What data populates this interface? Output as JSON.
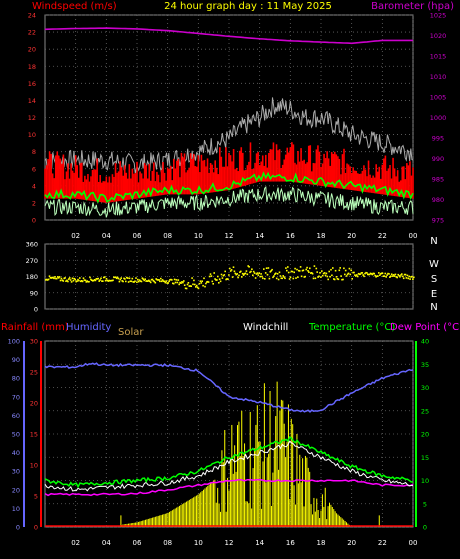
{
  "header": {
    "left_label": "Windspeed (m/s)",
    "title": "24 hour graph day : 11 May 2025",
    "right_label": "Barometer (hpa)"
  },
  "colors": {
    "windspeed": "#ff0000",
    "barometer": "#cc00cc",
    "gust": "#aaaaaa",
    "avg_wind": "#00ff00",
    "low_wind": "#bbffbb",
    "direction": "#ffff00",
    "rain": "#ff0000",
    "humidity": "#6666ff",
    "solar": "#ffff00",
    "windchill": "#ffffff",
    "temperature": "#00ff00",
    "dewpoint": "#ff00ff"
  },
  "chart_data": [
    {
      "type": "line",
      "x_ticks": [
        "02",
        "04",
        "06",
        "08",
        "10",
        "12",
        "14",
        "16",
        "18",
        "20",
        "22",
        "00"
      ],
      "x_hours": [
        0,
        24
      ],
      "left_axis": {
        "label": "Windspeed (m/s)",
        "ylim": [
          0,
          24
        ],
        "ticks": [
          0,
          2,
          4,
          6,
          8,
          10,
          12,
          14,
          16,
          18,
          20,
          22,
          24
        ]
      },
      "right_axis": {
        "label": "Barometer (hpa)",
        "ylim": [
          975,
          1025
        ],
        "ticks": [
          975,
          980,
          985,
          990,
          995,
          1000,
          1005,
          1010,
          1015,
          1020,
          1025
        ]
      },
      "series": [
        {
          "name": "Barometer",
          "axis": "right",
          "x": [
            0,
            2,
            4,
            6,
            8,
            10,
            12,
            14,
            16,
            18,
            20,
            22,
            24
          ],
          "values": [
            1021.5,
            1021.7,
            1021.8,
            1021.6,
            1021.2,
            1020.5,
            1019.8,
            1019.2,
            1018.7,
            1018.4,
            1018.1,
            1018.8,
            1018.8
          ]
        },
        {
          "axis": "left",
          "x": [
            0,
            2,
            4,
            6,
            8,
            10,
            11,
            12,
            13,
            14,
            15,
            16,
            17,
            18,
            19,
            20,
            22,
            24
          ],
          "values": [
            7,
            7,
            7,
            6.5,
            7,
            8,
            8.8,
            9.5,
            11,
            12,
            13.5,
            13,
            12,
            12,
            11,
            10,
            9,
            8
          ]
        },
        {
          "axis": "left",
          "x": [
            0,
            2,
            4,
            6,
            8,
            10,
            12,
            14,
            16,
            18,
            20,
            22,
            24
          ],
          "values": [
            6,
            5.5,
            5,
            5,
            5.5,
            6,
            6.5,
            7,
            7,
            6.5,
            6,
            5.5,
            5
          ]
        },
        {
          "axis": "left",
          "x": [
            0,
            2,
            4,
            6,
            8,
            10,
            12,
            14,
            16,
            18,
            20,
            22,
            24
          ],
          "values": [
            3,
            3,
            2.5,
            3,
            3.5,
            3.5,
            4,
            5,
            5,
            4.5,
            4,
            3.5,
            3
          ]
        },
        {
          "axis": "left",
          "x": [
            0,
            2,
            4,
            6,
            8,
            10,
            12,
            14,
            16,
            18,
            20,
            22,
            24
          ],
          "values": [
            1.5,
            1.5,
            1.2,
            1.5,
            2,
            2,
            2.5,
            3,
            3,
            2.5,
            2,
            1.5,
            1.5
          ]
        }
      ]
    },
    {
      "type": "scatter",
      "x_ticks": [
        "02",
        "04",
        "06",
        "08",
        "10",
        "12",
        "14",
        "16",
        "18",
        "20",
        "22",
        "00"
      ],
      "left_axis": {
        "ylim": [
          0,
          360
        ],
        "ticks": [
          0,
          90,
          180,
          270,
          360
        ]
      },
      "right_labels": [
        "N",
        "W",
        "S",
        "E",
        "N"
      ],
      "x": [
        0,
        2,
        4,
        6,
        8,
        9,
        10,
        11,
        12,
        13,
        14,
        15,
        16,
        17,
        18,
        19,
        20,
        22,
        24
      ],
      "values": [
        175,
        165,
        170,
        165,
        160,
        150,
        145,
        170,
        200,
        210,
        200,
        195,
        205,
        210,
        205,
        200,
        195,
        195,
        180
      ]
    },
    {
      "type": "line",
      "header_labels": [
        "Rainfall (mm)",
        "Humidity",
        "Solar",
        "Windchill",
        "Temperature (°C)",
        "Dew Point (°C)"
      ],
      "x_ticks": [
        "02",
        "04",
        "06",
        "08",
        "10",
        "12",
        "14",
        "16",
        "18",
        "20",
        "22",
        "00"
      ],
      "humidity_axis": {
        "ylim": [
          0,
          100
        ],
        "ticks": [
          0,
          10,
          20,
          30,
          40,
          50,
          60,
          70,
          80,
          90,
          100
        ]
      },
      "rain_axis": {
        "ylim": [
          0,
          30
        ],
        "ticks": [
          0,
          5,
          10,
          15,
          20,
          25,
          30
        ]
      },
      "temp_axis": {
        "ylim": [
          0,
          40
        ],
        "ticks": [
          0,
          5,
          10,
          15,
          20,
          25,
          30,
          35,
          40
        ]
      },
      "series": [
        {
          "name": "Humidity",
          "axis": "humidity",
          "x": [
            0,
            2,
            3,
            4,
            6,
            8,
            10,
            12,
            14,
            16,
            17,
            18,
            20,
            22,
            24
          ],
          "values": [
            86,
            86,
            88,
            87,
            87,
            87,
            84,
            70,
            67,
            63,
            62,
            63,
            72,
            80,
            85
          ]
        },
        {
          "name": "Temperature (°C)",
          "axis": "temp",
          "x": [
            0,
            2,
            4,
            6,
            8,
            10,
            12,
            14,
            16,
            17,
            18,
            20,
            22,
            24
          ],
          "values": [
            10,
            9,
            9.5,
            10,
            10.5,
            12,
            15,
            17,
            19,
            17.5,
            16,
            13,
            11,
            10
          ]
        },
        {
          "name": "Windchill",
          "axis": "temp",
          "x": [
            0,
            2,
            4,
            6,
            8,
            10,
            12,
            14,
            16,
            17,
            18,
            20,
            22,
            24
          ],
          "values": [
            9,
            8,
            8.5,
            9,
            9.5,
            11,
            14,
            16,
            18,
            16.5,
            15,
            12,
            10,
            9
          ]
        },
        {
          "name": "Dew Point (°C)",
          "axis": "temp",
          "x": [
            0,
            2,
            4,
            6,
            8,
            10,
            12,
            14,
            16,
            18,
            20,
            22,
            24
          ],
          "values": [
            7,
            7,
            7,
            7.2,
            8,
            9,
            10,
            10,
            10,
            10,
            10,
            9,
            9
          ]
        },
        {
          "name": "Solar",
          "axis": "temp",
          "x": [
            0,
            4.9,
            5,
            6,
            8,
            9,
            10,
            11,
            11.5,
            12,
            14,
            15,
            16,
            17,
            18,
            19,
            19.5,
            20,
            21,
            22,
            24
          ],
          "values": [
            0,
            0,
            0.5,
            1,
            3,
            5,
            7,
            10,
            14,
            20,
            22,
            25,
            20,
            12,
            8,
            3,
            1.5,
            0,
            0,
            0,
            0
          ]
        },
        {
          "name": "Rainfall (mm)",
          "axis": "rain",
          "x": [
            0,
            24
          ],
          "values": [
            0,
            0
          ]
        }
      ]
    }
  ]
}
